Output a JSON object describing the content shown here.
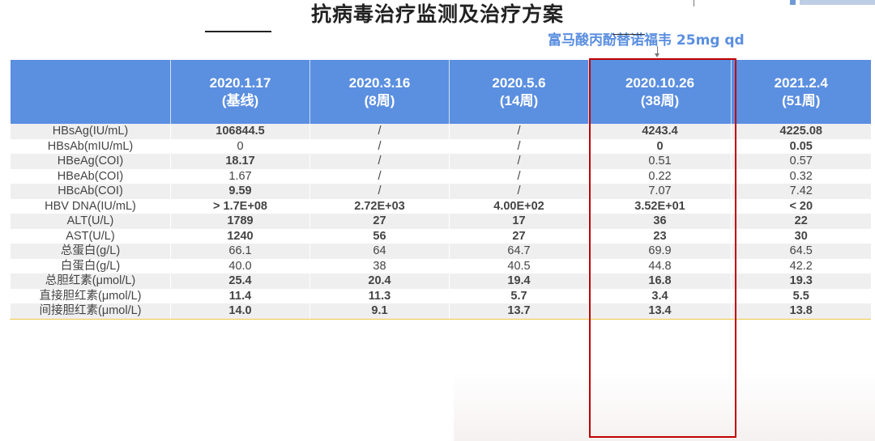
{
  "title": "抗病毒治疗监测及治疗方案",
  "annotation": {
    "drug_label": "富马酸丙酚替诺福韦 25mg qd",
    "arrow_icon": "down-arrow"
  },
  "colors": {
    "header_bg": "#5b8fe0",
    "highlight_border": "#c00000",
    "abnormal_value": "#c00000",
    "navy_value": "#10296b",
    "drug_label": "#5b8fe0"
  },
  "table": {
    "headers": [
      {
        "date": "",
        "week": ""
      },
      {
        "date": "2020.1.17",
        "week": "(基线)"
      },
      {
        "date": "2020.3.16",
        "week": "(8周)"
      },
      {
        "date": "2020.5.6",
        "week": "(14周)"
      },
      {
        "date": "2020.10.26",
        "week": "(38周)"
      },
      {
        "date": "2021.2.4",
        "week": "(51周)"
      }
    ],
    "highlighted_column": 4,
    "rows": [
      {
        "name": "HBsAg(IU/mL)",
        "values": [
          "106844.5",
          "/",
          "/",
          "4243.4",
          "4225.08"
        ],
        "styles": [
          "red",
          "slash",
          "slash",
          "red",
          "red"
        ]
      },
      {
        "name": "HBsAb(mIU/mL)",
        "values": [
          "0",
          "/",
          "/",
          "0",
          "0.05"
        ],
        "styles": [
          "plain",
          "slash",
          "slash",
          "navy",
          "navy"
        ]
      },
      {
        "name": "HBeAg(COI)",
        "values": [
          "18.17",
          "/",
          "/",
          "0.51",
          "0.57"
        ],
        "styles": [
          "red",
          "slash",
          "slash",
          "plain",
          "plain"
        ]
      },
      {
        "name": "HBeAb(COI)",
        "values": [
          "1.67",
          "/",
          "/",
          "0.22",
          "0.32"
        ],
        "styles": [
          "plain",
          "slash",
          "slash",
          "plain",
          "plain"
        ]
      },
      {
        "name": "HBcAb(COI)",
        "values": [
          "9.59",
          "/",
          "/",
          "7.07",
          "7.42"
        ],
        "styles": [
          "red",
          "slash",
          "slash",
          "plain",
          "plain"
        ]
      },
      {
        "name": "HBV DNA(IU/mL)",
        "values": [
          "> 1.7E+08",
          "2.72E+03",
          "4.00E+02",
          "3.52E+01",
          "< 20"
        ],
        "styles": [
          "red",
          "red",
          "red",
          "red",
          "red"
        ]
      },
      {
        "name": "ALT(U/L)",
        "values": [
          "1789",
          "27",
          "17",
          "36",
          "22"
        ],
        "styles": [
          "red",
          "bold",
          "bold",
          "bold",
          "bold"
        ]
      },
      {
        "name": "AST(U/L)",
        "values": [
          "1240",
          "56",
          "27",
          "23",
          "30"
        ],
        "styles": [
          "red",
          "bold",
          "bold",
          "bold",
          "bold"
        ]
      },
      {
        "name": "总蛋白(g/L)",
        "values": [
          "66.1",
          "64",
          "64.7",
          "69.9",
          "64.5"
        ],
        "styles": [
          "plain",
          "plain",
          "plain",
          "plain",
          "plain"
        ]
      },
      {
        "name": "白蛋白(g/L)",
        "values": [
          "40.0",
          "38",
          "40.5",
          "44.8",
          "42.2"
        ],
        "styles": [
          "plain",
          "plain",
          "plain",
          "plain",
          "plain"
        ]
      },
      {
        "name": "总胆红素(μmol/L)",
        "values": [
          "25.4",
          "20.4",
          "19.4",
          "16.8",
          "19.3"
        ],
        "styles": [
          "bold",
          "bold",
          "bold",
          "bold",
          "bold"
        ]
      },
      {
        "name": "直接胆红素(μmol/L)",
        "values": [
          "11.4",
          "11.3",
          "5.7",
          "3.4",
          "5.5"
        ],
        "styles": [
          "bold",
          "bold",
          "bold",
          "bold",
          "bold"
        ]
      },
      {
        "name": "间接胆红素(μmol/L)",
        "values": [
          "14.0",
          "9.1",
          "13.7",
          "13.4",
          "13.8"
        ],
        "styles": [
          "bold",
          "bold",
          "bold",
          "bold",
          "bold"
        ]
      }
    ]
  }
}
